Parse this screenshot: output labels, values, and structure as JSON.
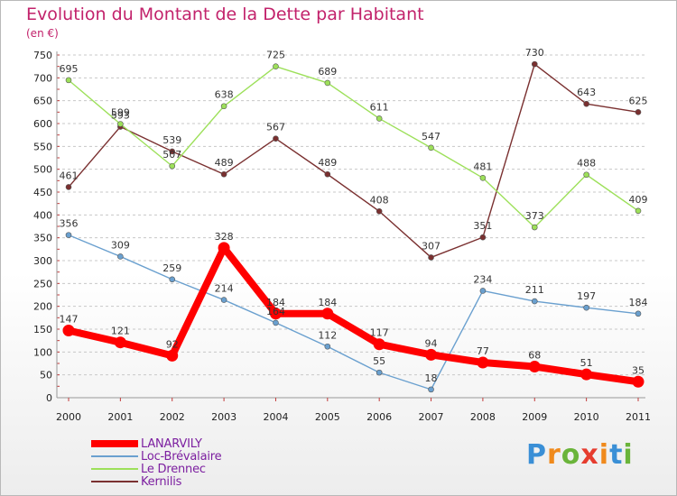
{
  "title": "Evolution du Montant de la Dette par Habitant",
  "unit_label": "(en €)",
  "logo": {
    "text": "Proxiti"
  },
  "chart_data": {
    "type": "line",
    "title": "Evolution du Montant de la Dette par Habitant",
    "ylabel": "(en €)",
    "categories": [
      "2000",
      "2001",
      "2002",
      "2003",
      "2004",
      "2005",
      "2006",
      "2007",
      "2008",
      "2009",
      "2010",
      "2011"
    ],
    "y_ticks": [
      "0",
      "50",
      "100",
      "150",
      "200",
      "250",
      "300",
      "350",
      "400",
      "450",
      "500",
      "550",
      "600",
      "650",
      "700",
      "750"
    ],
    "ylim": [
      0,
      750
    ],
    "grid": "horizontal dashed",
    "legend_position": "bottom-left",
    "series": [
      {
        "name": "LANARVILY",
        "color": "#ff0000",
        "emphasis": true,
        "values": [
          147,
          121,
          92,
          328,
          184,
          184,
          117,
          94,
          77,
          68,
          51,
          35
        ],
        "labels": [
          "147",
          "121",
          "92",
          "328",
          "184",
          "184",
          "117",
          "94",
          "77",
          "68",
          "51",
          "35"
        ]
      },
      {
        "name": "Loc-Brévalaire",
        "color": "#6aa0cf",
        "values": [
          356,
          309,
          259,
          214,
          164,
          112,
          55,
          18,
          234,
          211,
          197,
          184
        ],
        "labels": [
          "356",
          "309",
          "259",
          "214",
          "164",
          "112",
          "55",
          "18",
          "234",
          "211",
          "197",
          "184"
        ]
      },
      {
        "name": "Le Drennec",
        "color": "#9de05a",
        "values": [
          695,
          599,
          507,
          638,
          725,
          689,
          611,
          547,
          481,
          373,
          488,
          409
        ],
        "labels": [
          "695",
          "599",
          "507",
          "638",
          "725",
          "689",
          "611",
          "547",
          "481",
          "373",
          "488",
          "409"
        ]
      },
      {
        "name": "Kernilis",
        "color": "#7a3030",
        "values": [
          461,
          593,
          539,
          489,
          567,
          489,
          408,
          307,
          351,
          730,
          643,
          625
        ],
        "labels": [
          "461",
          "593",
          "539",
          "489",
          "567",
          "489",
          "408",
          "307",
          "351",
          "730",
          "643",
          "625"
        ]
      }
    ]
  }
}
